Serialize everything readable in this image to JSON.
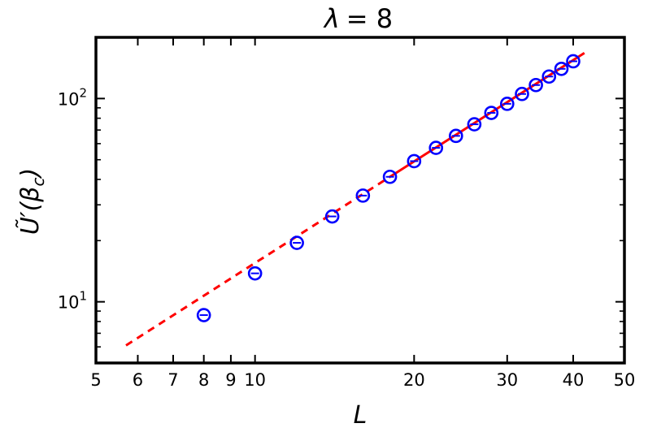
{
  "chart_data": {
    "type": "scatter",
    "title": "λ = 8",
    "xlabel": "L",
    "ylabel": "Ũ′(β_c)",
    "xscale": "log",
    "yscale": "log",
    "xlim": [
      5,
      50
    ],
    "ylim": [
      5,
      200
    ],
    "x_tick_labels": [
      "5",
      "6",
      "7",
      "8",
      "9",
      "10",
      "20",
      "30",
      "40",
      "50"
    ],
    "x_tick_values": [
      5,
      6,
      7,
      8,
      9,
      10,
      20,
      30,
      40,
      50
    ],
    "y_tick_labels": [
      "10¹",
      "10²"
    ],
    "y_tick_values": [
      10,
      100
    ],
    "grid": false,
    "series": [
      {
        "kind": "markers",
        "marker": "open-circle-with-errorbar",
        "color": "#0000ff",
        "points": [
          {
            "x": 8,
            "y": 8.6
          },
          {
            "x": 10,
            "y": 13.8
          },
          {
            "x": 12,
            "y": 19.5
          },
          {
            "x": 14,
            "y": 26.3
          },
          {
            "x": 16,
            "y": 33.3
          },
          {
            "x": 18,
            "y": 41.2
          },
          {
            "x": 20,
            "y": 49.2
          },
          {
            "x": 22,
            "y": 57.2
          },
          {
            "x": 24,
            "y": 65.5
          },
          {
            "x": 26,
            "y": 74.7
          },
          {
            "x": 28,
            "y": 85.0
          },
          {
            "x": 30,
            "y": 94.2
          },
          {
            "x": 32,
            "y": 105.3
          },
          {
            "x": 34,
            "y": 116.5
          },
          {
            "x": 36,
            "y": 128.3
          },
          {
            "x": 38,
            "y": 140.0
          },
          {
            "x": 40,
            "y": 152.5
          }
        ]
      },
      {
        "kind": "fit-line",
        "color": "#ff0000",
        "style": "solid",
        "x_start": 18,
        "x_end": 42,
        "y_start": 41.2,
        "y_end": 167.5
      },
      {
        "kind": "fit-line",
        "color": "#ff0000",
        "style": "dashed",
        "x_start": 5.7,
        "x_end": 18,
        "y_start": 6.1,
        "y_end": 41.2
      }
    ]
  }
}
